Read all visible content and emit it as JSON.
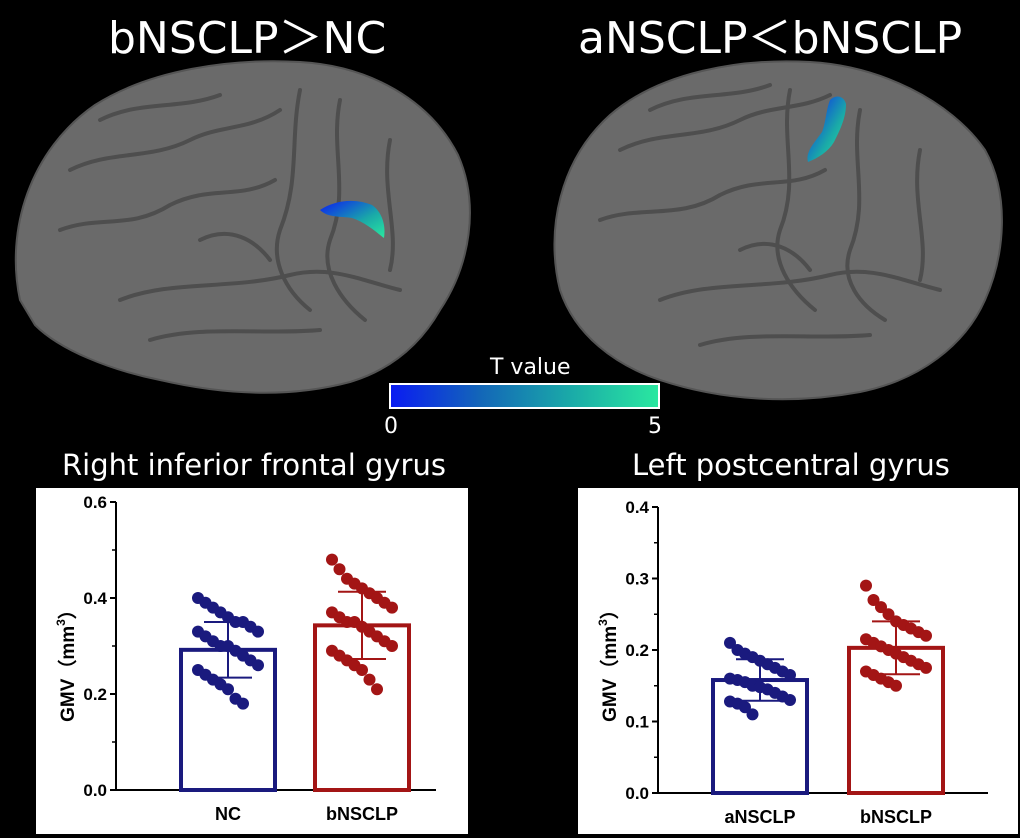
{
  "header": {
    "left_title": "bNSCLP＞NC",
    "right_title": "aNSCLP＜bNSCLP"
  },
  "colorbar": {
    "title": "T value",
    "min_label": "0",
    "max_label": "5",
    "colors": [
      "#0a1cf2",
      "#2ae8a0"
    ]
  },
  "colors": {
    "background": "#000000",
    "brain_surface": "#6a6a6a",
    "group_blue": "#1a1a7e",
    "group_red": "#a31515"
  },
  "chart_data": [
    {
      "type": "bar",
      "title": "Right inferior frontal gyrus",
      "ylabel": "GMV（mm³）",
      "ylabel_main": "GMV（mm",
      "ylabel_sup": "3",
      "ylabel_close": "）",
      "ylim": [
        0,
        0.6
      ],
      "yticks": [
        "0.0",
        "0.2",
        "0.4",
        "0.6"
      ],
      "categories": [
        "NC",
        "bNSCLP"
      ],
      "colors": [
        "#1a1a7e",
        "#a31515"
      ],
      "values": [
        0.292,
        0.343
      ],
      "sd": [
        0.058,
        0.07
      ],
      "points": [
        [
          0.4,
          0.39,
          0.38,
          0.37,
          0.36,
          0.35,
          0.35,
          0.34,
          0.33,
          0.33,
          0.32,
          0.31,
          0.3,
          0.3,
          0.29,
          0.28,
          0.27,
          0.26,
          0.25,
          0.24,
          0.23,
          0.22,
          0.21,
          0.19,
          0.18
        ],
        [
          0.48,
          0.46,
          0.44,
          0.43,
          0.42,
          0.41,
          0.4,
          0.39,
          0.38,
          0.37,
          0.36,
          0.35,
          0.35,
          0.34,
          0.33,
          0.32,
          0.31,
          0.3,
          0.29,
          0.28,
          0.27,
          0.26,
          0.25,
          0.23,
          0.21
        ]
      ]
    },
    {
      "type": "bar",
      "title": "Left postcentral gyrus",
      "ylabel": "GMV（mm³）",
      "ylabel_main": "GMV（mm",
      "ylabel_sup": "3",
      "ylabel_close": "）",
      "ylim": [
        0,
        0.4
      ],
      "yticks": [
        "0.0",
        "0.1",
        "0.2",
        "0.3",
        "0.4"
      ],
      "categories": [
        "aNSCLP",
        "bNSCLP"
      ],
      "colors": [
        "#1a1a7e",
        "#a31515"
      ],
      "values": [
        0.158,
        0.203
      ],
      "sd": [
        0.029,
        0.037
      ],
      "points": [
        [
          0.21,
          0.2,
          0.195,
          0.19,
          0.185,
          0.18,
          0.175,
          0.17,
          0.165,
          0.16,
          0.158,
          0.155,
          0.15,
          0.148,
          0.145,
          0.14,
          0.135,
          0.13,
          0.128,
          0.125,
          0.12,
          0.11
        ],
        [
          0.29,
          0.27,
          0.26,
          0.25,
          0.24,
          0.235,
          0.23,
          0.225,
          0.22,
          0.215,
          0.21,
          0.205,
          0.2,
          0.195,
          0.19,
          0.185,
          0.18,
          0.175,
          0.17,
          0.165,
          0.16,
          0.155,
          0.15
        ]
      ]
    }
  ]
}
